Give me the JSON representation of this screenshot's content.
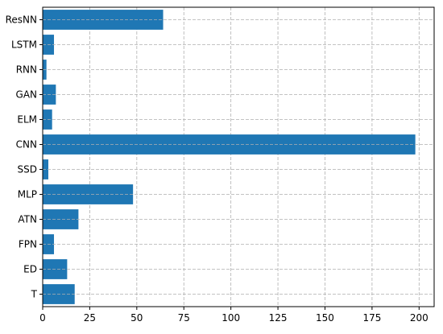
{
  "chart_data": {
    "type": "bar",
    "orientation": "horizontal",
    "categories": [
      "ResNN",
      "LSTM",
      "RNN",
      "GAN",
      "ELM",
      "CNN",
      "SSD",
      "MLP",
      "ATN",
      "FPN",
      "ED",
      "T"
    ],
    "values": [
      64,
      6,
      2,
      7,
      5,
      198,
      3,
      48,
      19,
      6,
      13,
      17
    ],
    "title": "",
    "xlabel": "",
    "ylabel": "",
    "xlim": [
      0,
      208
    ],
    "xticks": [
      0,
      25,
      50,
      75,
      100,
      125,
      150,
      175,
      200
    ],
    "grid": true,
    "bar_color": "#1f77b4",
    "grid_color": "#b0b0b0"
  }
}
